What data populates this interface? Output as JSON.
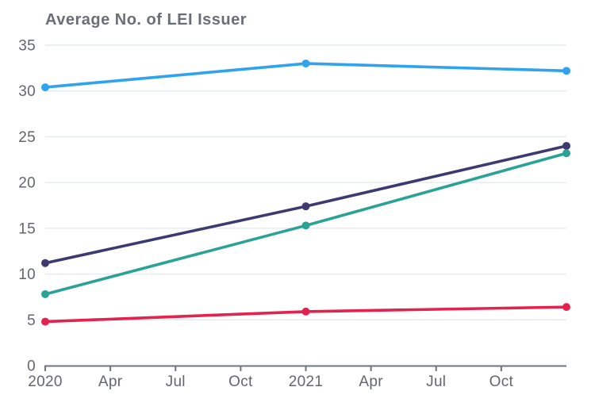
{
  "chart_data": {
    "type": "line",
    "title": "Average No. of LEI Issuer",
    "xlabel": "",
    "ylabel": "",
    "x_tick_labels": [
      "2020",
      "Apr",
      "Jul",
      "Oct",
      "2021",
      "Apr",
      "Jul",
      "Oct"
    ],
    "x_axis_slot_count": 8,
    "y_ticks": [
      0,
      5,
      10,
      15,
      20,
      25,
      30,
      35
    ],
    "ylim": [
      0,
      35
    ],
    "grid": "horizontal-on",
    "legend_position": "none",
    "series": [
      {
        "name": "sky-blue-series",
        "color": "#2FA2F0",
        "x_slots": [
          0,
          4,
          8
        ],
        "values": [
          30.4,
          33.0,
          32.2
        ]
      },
      {
        "name": "dark-purple-series",
        "color": "#3D3A72",
        "x_slots": [
          0,
          4,
          8
        ],
        "values": [
          11.2,
          17.4,
          24.0
        ]
      },
      {
        "name": "teal-series",
        "color": "#2AA396",
        "x_slots": [
          0,
          4,
          8
        ],
        "values": [
          7.8,
          15.3,
          23.2
        ]
      },
      {
        "name": "crimson-series",
        "color": "#E3234E",
        "x_slots": [
          0,
          4,
          8
        ],
        "values": [
          4.8,
          5.9,
          6.4
        ]
      }
    ],
    "style_colors": {
      "gridline": "#E3E8F2",
      "axis_line": "#6F747E",
      "label_text": "#63666E",
      "title_text": "#6A6E77"
    }
  }
}
